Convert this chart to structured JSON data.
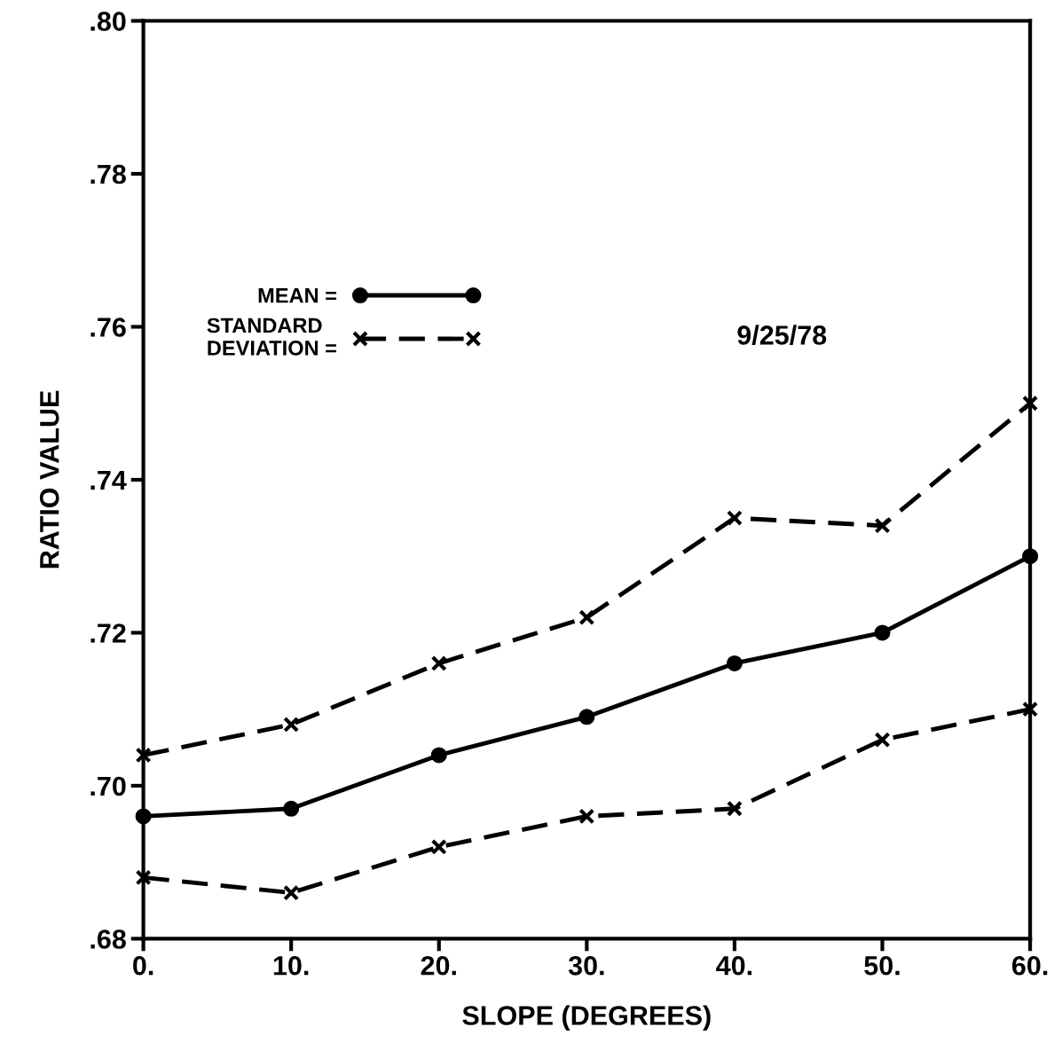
{
  "chart_data": {
    "type": "line",
    "xlabel": "SLOPE (DEGREES)",
    "ylabel": "RATIO VALUE",
    "x": [
      0,
      10,
      20,
      30,
      40,
      50,
      60
    ],
    "series": [
      {
        "name": "MEAN =",
        "color": "#000000",
        "values": [
          0.696,
          0.697,
          0.704,
          0.709,
          0.716,
          0.72,
          0.73
        ],
        "marker": "circle",
        "line_style": "solid"
      },
      {
        "name": "STANDARD\nDEVIATION =",
        "color": "#000000",
        "values": [
          0.704,
          0.708,
          0.716,
          0.722,
          0.735,
          0.734,
          0.75
        ],
        "marker": "cross",
        "line_style": "dashed"
      },
      {
        "color": "#000000",
        "values": [
          0.688,
          0.686,
          0.692,
          0.696,
          0.697,
          0.706,
          0.71
        ],
        "marker": "cross",
        "line_style": "dashed"
      }
    ],
    "xlim": [
      0,
      60
    ],
    "ylim": [
      0.68,
      0.8
    ],
    "xticks": [
      {
        "value": 0,
        "label": "0."
      },
      {
        "value": 10,
        "label": "10."
      },
      {
        "value": 20,
        "label": "20."
      },
      {
        "value": 30,
        "label": "30."
      },
      {
        "value": 40,
        "label": "40."
      },
      {
        "value": 50,
        "label": "50."
      },
      {
        "value": 60,
        "label": "60."
      }
    ],
    "yticks": [
      {
        "value": 0.68,
        "label": ".68"
      },
      {
        "value": 0.7,
        "label": ".70"
      },
      {
        "value": 0.72,
        "label": ".72"
      },
      {
        "value": 0.74,
        "label": ".74"
      },
      {
        "value": 0.76,
        "label": ".76"
      },
      {
        "value": 0.78,
        "label": ".78"
      },
      {
        "value": 0.8,
        "label": ".80"
      }
    ],
    "annotations": [
      "9/25/78"
    ],
    "legend": "upper left",
    "grid": false
  }
}
